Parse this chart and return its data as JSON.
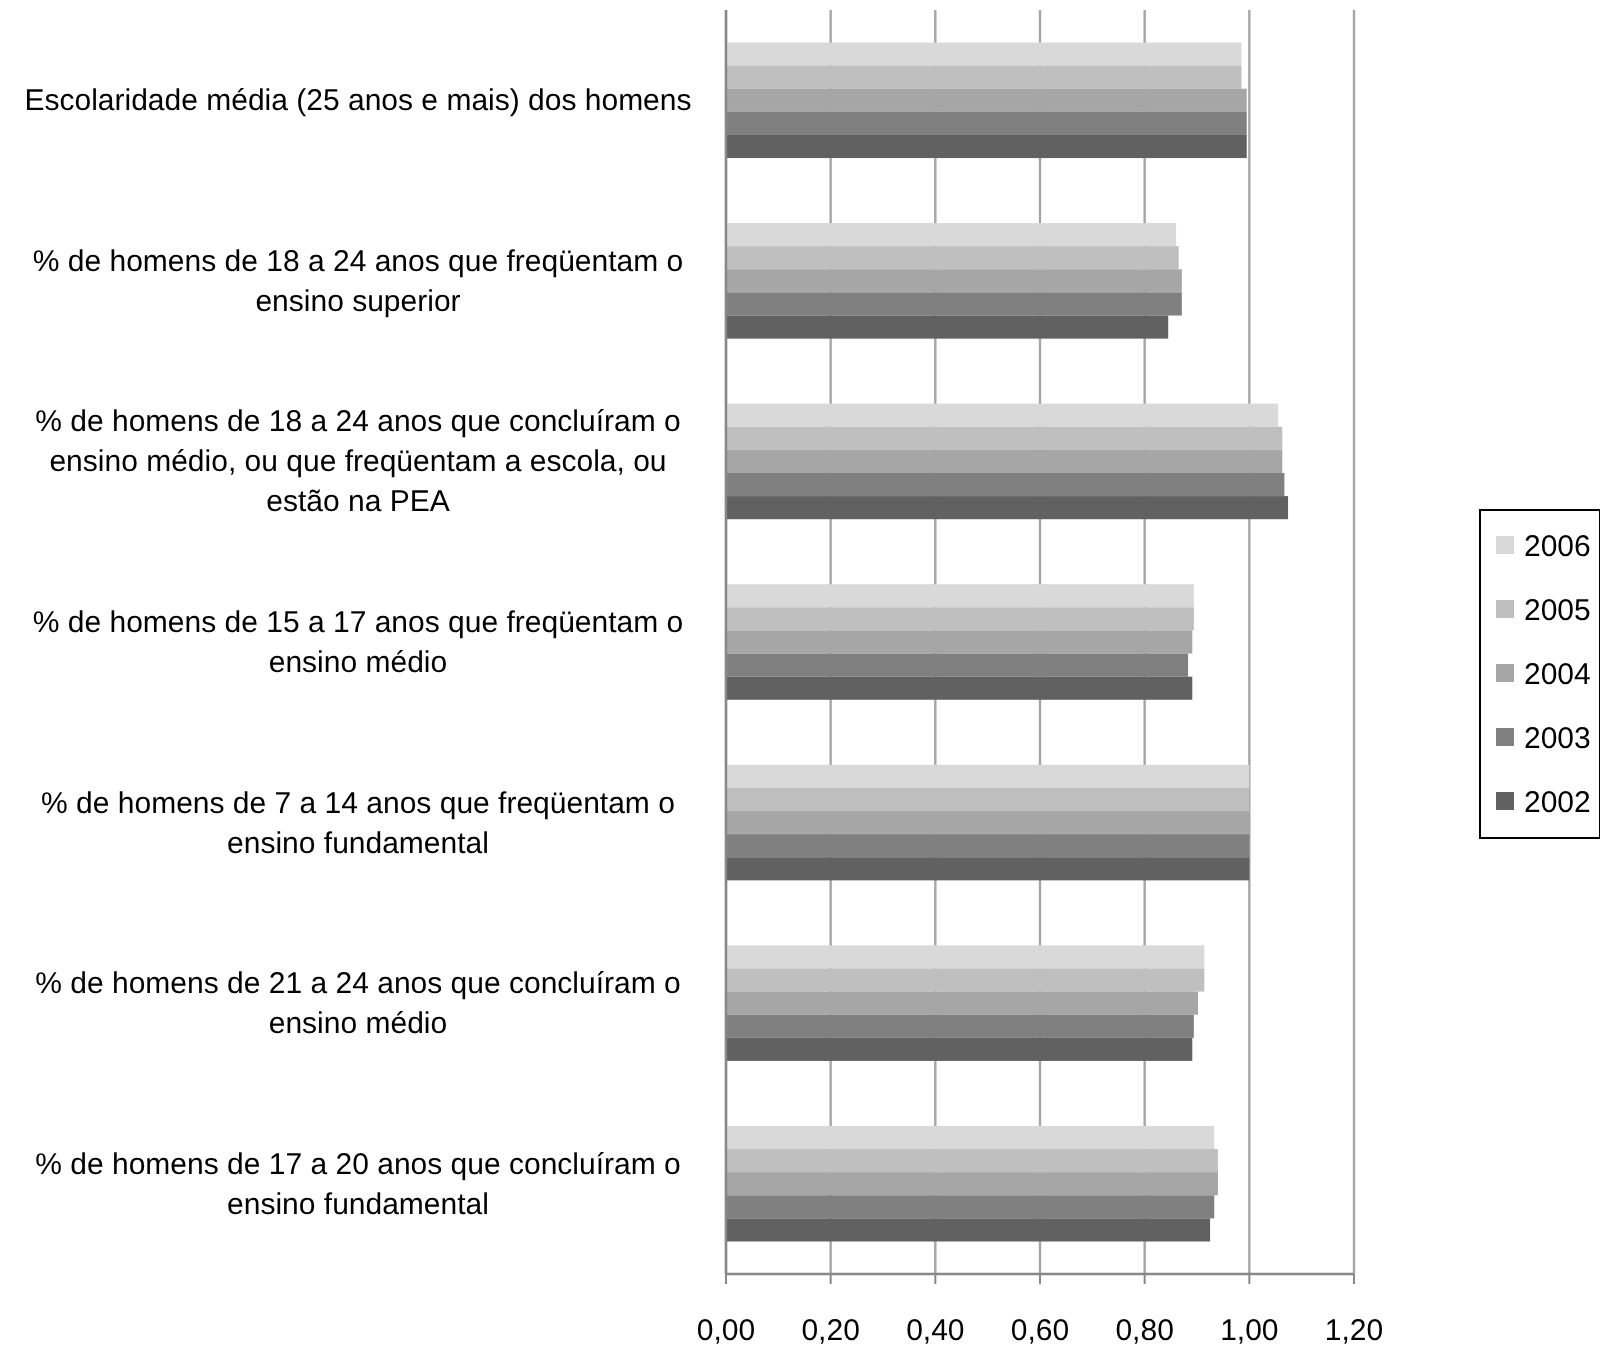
{
  "chart_data": {
    "type": "bar",
    "orientation": "horizontal",
    "categories": [
      "Escolaridade média (25 anos e mais) dos homens",
      "% de homens de 18 a 24 anos que freqüentam o ensino superior",
      "% de homens de 18 a 24 anos que concluíram o ensino médio, ou que freqüentam a escola, ou estão na PEA",
      "% de homens de 15 a 17 anos que freqüentam o ensino médio",
      "% de homens de 7 a 14 anos que freqüentam o ensino fundamental",
      "% de homens de 21 a 24 anos que concluíram o ensino médio",
      "% de homens de 17 a 20 anos que concluíram o ensino fundamental"
    ],
    "series": [
      {
        "name": "2006",
        "color": "#d9d9d9",
        "values": [
          0.985,
          0.86,
          1.055,
          0.894,
          1.0,
          0.914,
          0.933
        ]
      },
      {
        "name": "2005",
        "color": "#bfbfbf",
        "values": [
          0.985,
          0.865,
          1.063,
          0.894,
          1.0,
          0.914,
          0.94
        ]
      },
      {
        "name": "2004",
        "color": "#a6a6a6",
        "values": [
          0.995,
          0.871,
          1.063,
          0.891,
          1.0,
          0.902,
          0.94
        ]
      },
      {
        "name": "2003",
        "color": "#808080",
        "values": [
          0.995,
          0.871,
          1.067,
          0.883,
          1.0,
          0.894,
          0.933
        ]
      },
      {
        "name": "2002",
        "color": "#616161",
        "values": [
          0.995,
          0.845,
          1.074,
          0.891,
          1.0,
          0.891,
          0.925
        ]
      }
    ],
    "xlim": [
      0,
      1.2
    ],
    "xticks": [
      {
        "value": 0,
        "label": "0,00"
      },
      {
        "value": 0.2,
        "label": "0,20"
      },
      {
        "value": 0.4,
        "label": "0,40"
      },
      {
        "value": 0.6,
        "label": "0,60"
      },
      {
        "value": 0.8,
        "label": "0,80"
      },
      {
        "value": 1.0,
        "label": "1,00"
      },
      {
        "value": 1.2,
        "label": "1,20"
      }
    ],
    "grid": "x",
    "legend": "right"
  }
}
